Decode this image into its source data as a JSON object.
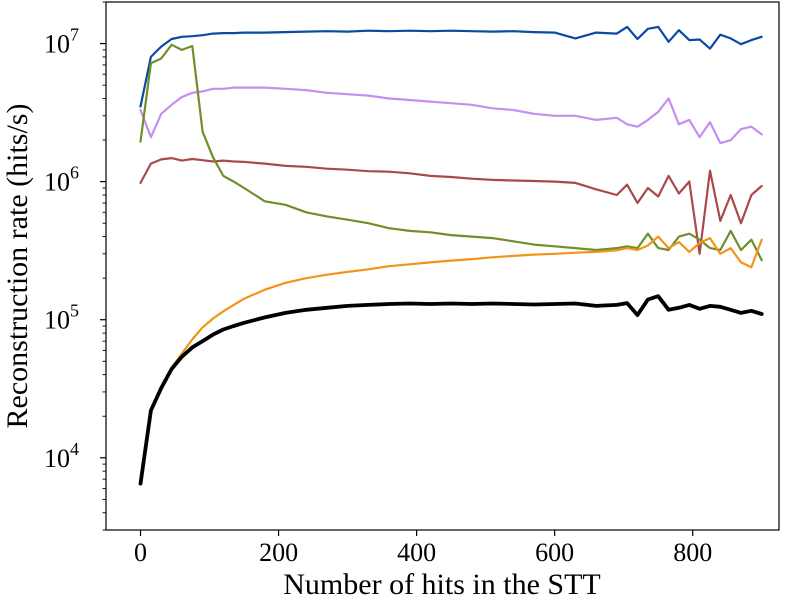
{
  "chart_data": {
    "type": "line",
    "title": "",
    "xlabel": "Number of hits in the STT",
    "ylabel": "Reconstruction rate (hits/s)",
    "xlim": [
      -50,
      925
    ],
    "ylim": [
      3000,
      20000000
    ],
    "y_scale": "log",
    "grid": false,
    "legend": "none",
    "x_ticks": [
      0,
      200,
      400,
      600,
      800
    ],
    "x_tick_labels": [
      "0",
      "200",
      "400",
      "600",
      "800"
    ],
    "y_ticks": [
      10000,
      100000,
      1000000,
      10000000
    ],
    "y_tick_labels": [
      {
        "base": "10",
        "exp": "4"
      },
      {
        "base": "10",
        "exp": "5"
      },
      {
        "base": "10",
        "exp": "6"
      },
      {
        "base": "10",
        "exp": "7"
      }
    ],
    "x": [
      0,
      15,
      30,
      45,
      60,
      75,
      90,
      105,
      120,
      135,
      150,
      180,
      210,
      240,
      270,
      300,
      330,
      360,
      390,
      420,
      450,
      480,
      510,
      540,
      570,
      600,
      630,
      660,
      690,
      705,
      720,
      735,
      750,
      765,
      780,
      795,
      810,
      825,
      840,
      855,
      870,
      885,
      900
    ],
    "series": [
      {
        "color": "#0a4aa3",
        "width": 2.2,
        "values": [
          3500000,
          8000000,
          9500000,
          10800000,
          11200000,
          11300000,
          11500000,
          11800000,
          11900000,
          11900000,
          12000000,
          12000000,
          12100000,
          12200000,
          12300000,
          12200000,
          12400000,
          12300000,
          12400000,
          12300000,
          12400000,
          12300000,
          12200000,
          12300000,
          12100000,
          12000000,
          10900000,
          12000000,
          11800000,
          13200000,
          10800000,
          12800000,
          13200000,
          10300000,
          12500000,
          10600000,
          10700000,
          9200000,
          11600000,
          10900000,
          9900000,
          10600000,
          11200000
        ]
      },
      {
        "color": "#c58ef0",
        "width": 2.2,
        "values": [
          3300000,
          2100000,
          3100000,
          3600000,
          4100000,
          4400000,
          4500000,
          4700000,
          4700000,
          4800000,
          4800000,
          4800000,
          4700000,
          4600000,
          4400000,
          4300000,
          4200000,
          4000000,
          3900000,
          3800000,
          3700000,
          3600000,
          3400000,
          3300000,
          3100000,
          3000000,
          3000000,
          2800000,
          2900000,
          2600000,
          2500000,
          2800000,
          3200000,
          4000000,
          2600000,
          2800000,
          2100000,
          2700000,
          1900000,
          2000000,
          2400000,
          2500000,
          2200000
        ]
      },
      {
        "color": "#a84a4a",
        "width": 2.2,
        "values": [
          980000,
          1350000,
          1450000,
          1480000,
          1420000,
          1460000,
          1430000,
          1400000,
          1420000,
          1400000,
          1390000,
          1350000,
          1300000,
          1280000,
          1240000,
          1220000,
          1190000,
          1180000,
          1150000,
          1100000,
          1080000,
          1050000,
          1030000,
          1020000,
          1010000,
          1000000,
          980000,
          880000,
          800000,
          950000,
          700000,
          900000,
          780000,
          1100000,
          820000,
          1000000,
          300000,
          1200000,
          520000,
          800000,
          500000,
          800000,
          930000
        ]
      },
      {
        "color": "#6f8f2a",
        "width": 2.2,
        "values": [
          1950000,
          7200000,
          7800000,
          9800000,
          9000000,
          9600000,
          2300000,
          1500000,
          1100000,
          1000000,
          900000,
          720000,
          680000,
          600000,
          560000,
          530000,
          500000,
          460000,
          440000,
          430000,
          410000,
          400000,
          390000,
          370000,
          350000,
          340000,
          330000,
          320000,
          330000,
          340000,
          330000,
          420000,
          330000,
          320000,
          400000,
          420000,
          380000,
          330000,
          320000,
          440000,
          320000,
          380000,
          270000
        ]
      },
      {
        "color": "#f39419",
        "width": 2.2,
        "values": [
          6500,
          22000,
          32000,
          45000,
          57000,
          72000,
          88000,
          102000,
          115000,
          128000,
          142000,
          165000,
          185000,
          200000,
          212000,
          222000,
          232000,
          244000,
          252000,
          260000,
          268000,
          275000,
          283000,
          290000,
          296000,
          300000,
          306000,
          310000,
          318000,
          330000,
          320000,
          345000,
          400000,
          330000,
          365000,
          310000,
          360000,
          390000,
          300000,
          330000,
          260000,
          240000,
          380000
        ]
      },
      {
        "color": "#000000",
        "width": 3.8,
        "values": [
          6500,
          22000,
          32000,
          44000,
          54000,
          63000,
          70000,
          78000,
          85000,
          90000,
          95000,
          104000,
          112000,
          118000,
          122000,
          126000,
          128000,
          130000,
          131000,
          130000,
          131000,
          130000,
          131000,
          130000,
          129000,
          130000,
          131000,
          126000,
          128000,
          132000,
          108000,
          140000,
          148000,
          118000,
          122000,
          128000,
          120000,
          126000,
          124000,
          118000,
          112000,
          116000,
          110000
        ]
      }
    ]
  }
}
